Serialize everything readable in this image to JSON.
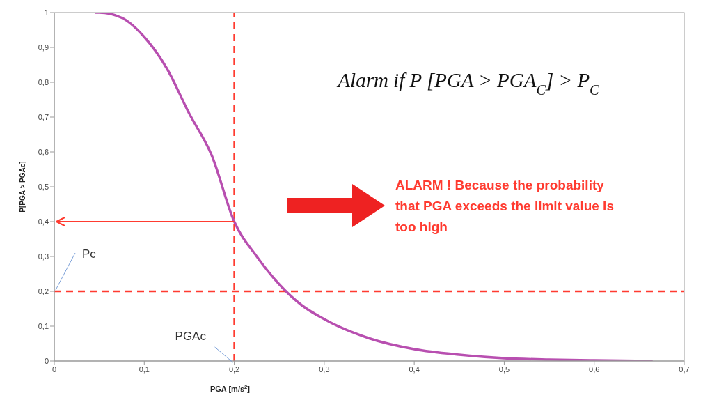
{
  "chart_data": {
    "type": "line",
    "xlabel": "PGA [m/s$^{2}$]",
    "ylabel": "P[PGA > PGAc]",
    "x": [
      0.045,
      0.05,
      0.075,
      0.1,
      0.125,
      0.15,
      0.175,
      0.2,
      0.225,
      0.25,
      0.275,
      0.3,
      0.35,
      0.4,
      0.45,
      0.5,
      0.55,
      0.6,
      0.665
    ],
    "series": [
      {
        "color": "#b84fb0",
        "values": [
          1,
          1,
          0.985,
          0.93,
          0.84,
          0.71,
          0.59,
          0.4,
          0.3,
          0.22,
          0.16,
          0.12,
          0.065,
          0.034,
          0.018,
          0.008,
          0.004,
          0.002,
          0
        ]
      }
    ],
    "xlim": [
      0,
      0.7
    ],
    "xticks": [
      0,
      {
        "value": 0.1,
        "label": "0,1"
      },
      {
        "value": 0.2,
        "label": "0,2"
      },
      {
        "value": 0.3,
        "label": "0,3"
      },
      {
        "value": 0.4,
        "label": "0,4"
      },
      {
        "value": 0.5,
        "label": "0,5"
      },
      {
        "value": 0.6,
        "label": "0,6"
      },
      {
        "value": 0.7,
        "label": "0,7"
      }
    ],
    "ylim": [
      0,
      1
    ],
    "yticks": [
      0,
      {
        "value": 0.1,
        "label": "0,1"
      },
      {
        "value": 0.2,
        "label": "0,2"
      },
      {
        "value": 0.3,
        "label": "0,3"
      },
      {
        "value": 0.4,
        "label": "0,4"
      },
      {
        "value": 0.5,
        "label": "0,5"
      },
      {
        "value": 0.6,
        "label": "0,6"
      },
      {
        "value": 0.7,
        "label": "0,7"
      },
      {
        "value": 0.8,
        "label": "0,8"
      },
      {
        "value": 0.9,
        "label": "0,9"
      },
      1
    ],
    "ref_lines": [
      {
        "axis": "x",
        "value": 0.2,
        "label": "PGAc",
        "color": "#ff3b30",
        "line_style": "dashed"
      },
      {
        "axis": "y",
        "value": 0.2,
        "label": "Pc",
        "color": "#ff3b30",
        "line_style": "dashed"
      }
    ],
    "annotations": [
      "Alarm if P [PGA > PGA$_{C}$] > P$_{C}$",
      "ALARM ! Because the probability that PGA exceeds the limit value is too high"
    ],
    "marker": "none",
    "line_style": "solid"
  }
}
